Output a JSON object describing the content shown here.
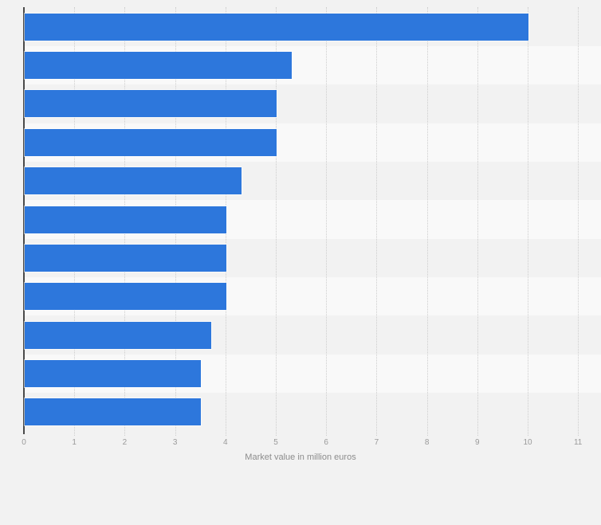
{
  "page": {
    "background_color": "#f2f2f2"
  },
  "chart_data": {
    "type": "bar",
    "orientation": "horizontal",
    "xlabel": "Market value in million euros",
    "values": [
      10,
      5.3,
      5,
      5,
      4.3,
      4,
      4,
      4,
      3.7,
      3.5,
      3.5
    ],
    "x_ticks": [
      "0",
      "1",
      "2",
      "3",
      "4",
      "5",
      "6",
      "7",
      "8",
      "9",
      "10",
      "11"
    ],
    "xlim": [
      0,
      11.45
    ],
    "grid": "dotted-vertical",
    "legend": "none",
    "row_banding": "alternating",
    "colors": {
      "bar": "#2d77dc",
      "band_dark": "#f2f2f2",
      "band_light": "#f9f9f9",
      "gridline": "#cdcdcd",
      "axis_line": "#4a4a4a",
      "tick_label": "#9a9a9a",
      "axis_title": "#8c8c8c"
    }
  }
}
